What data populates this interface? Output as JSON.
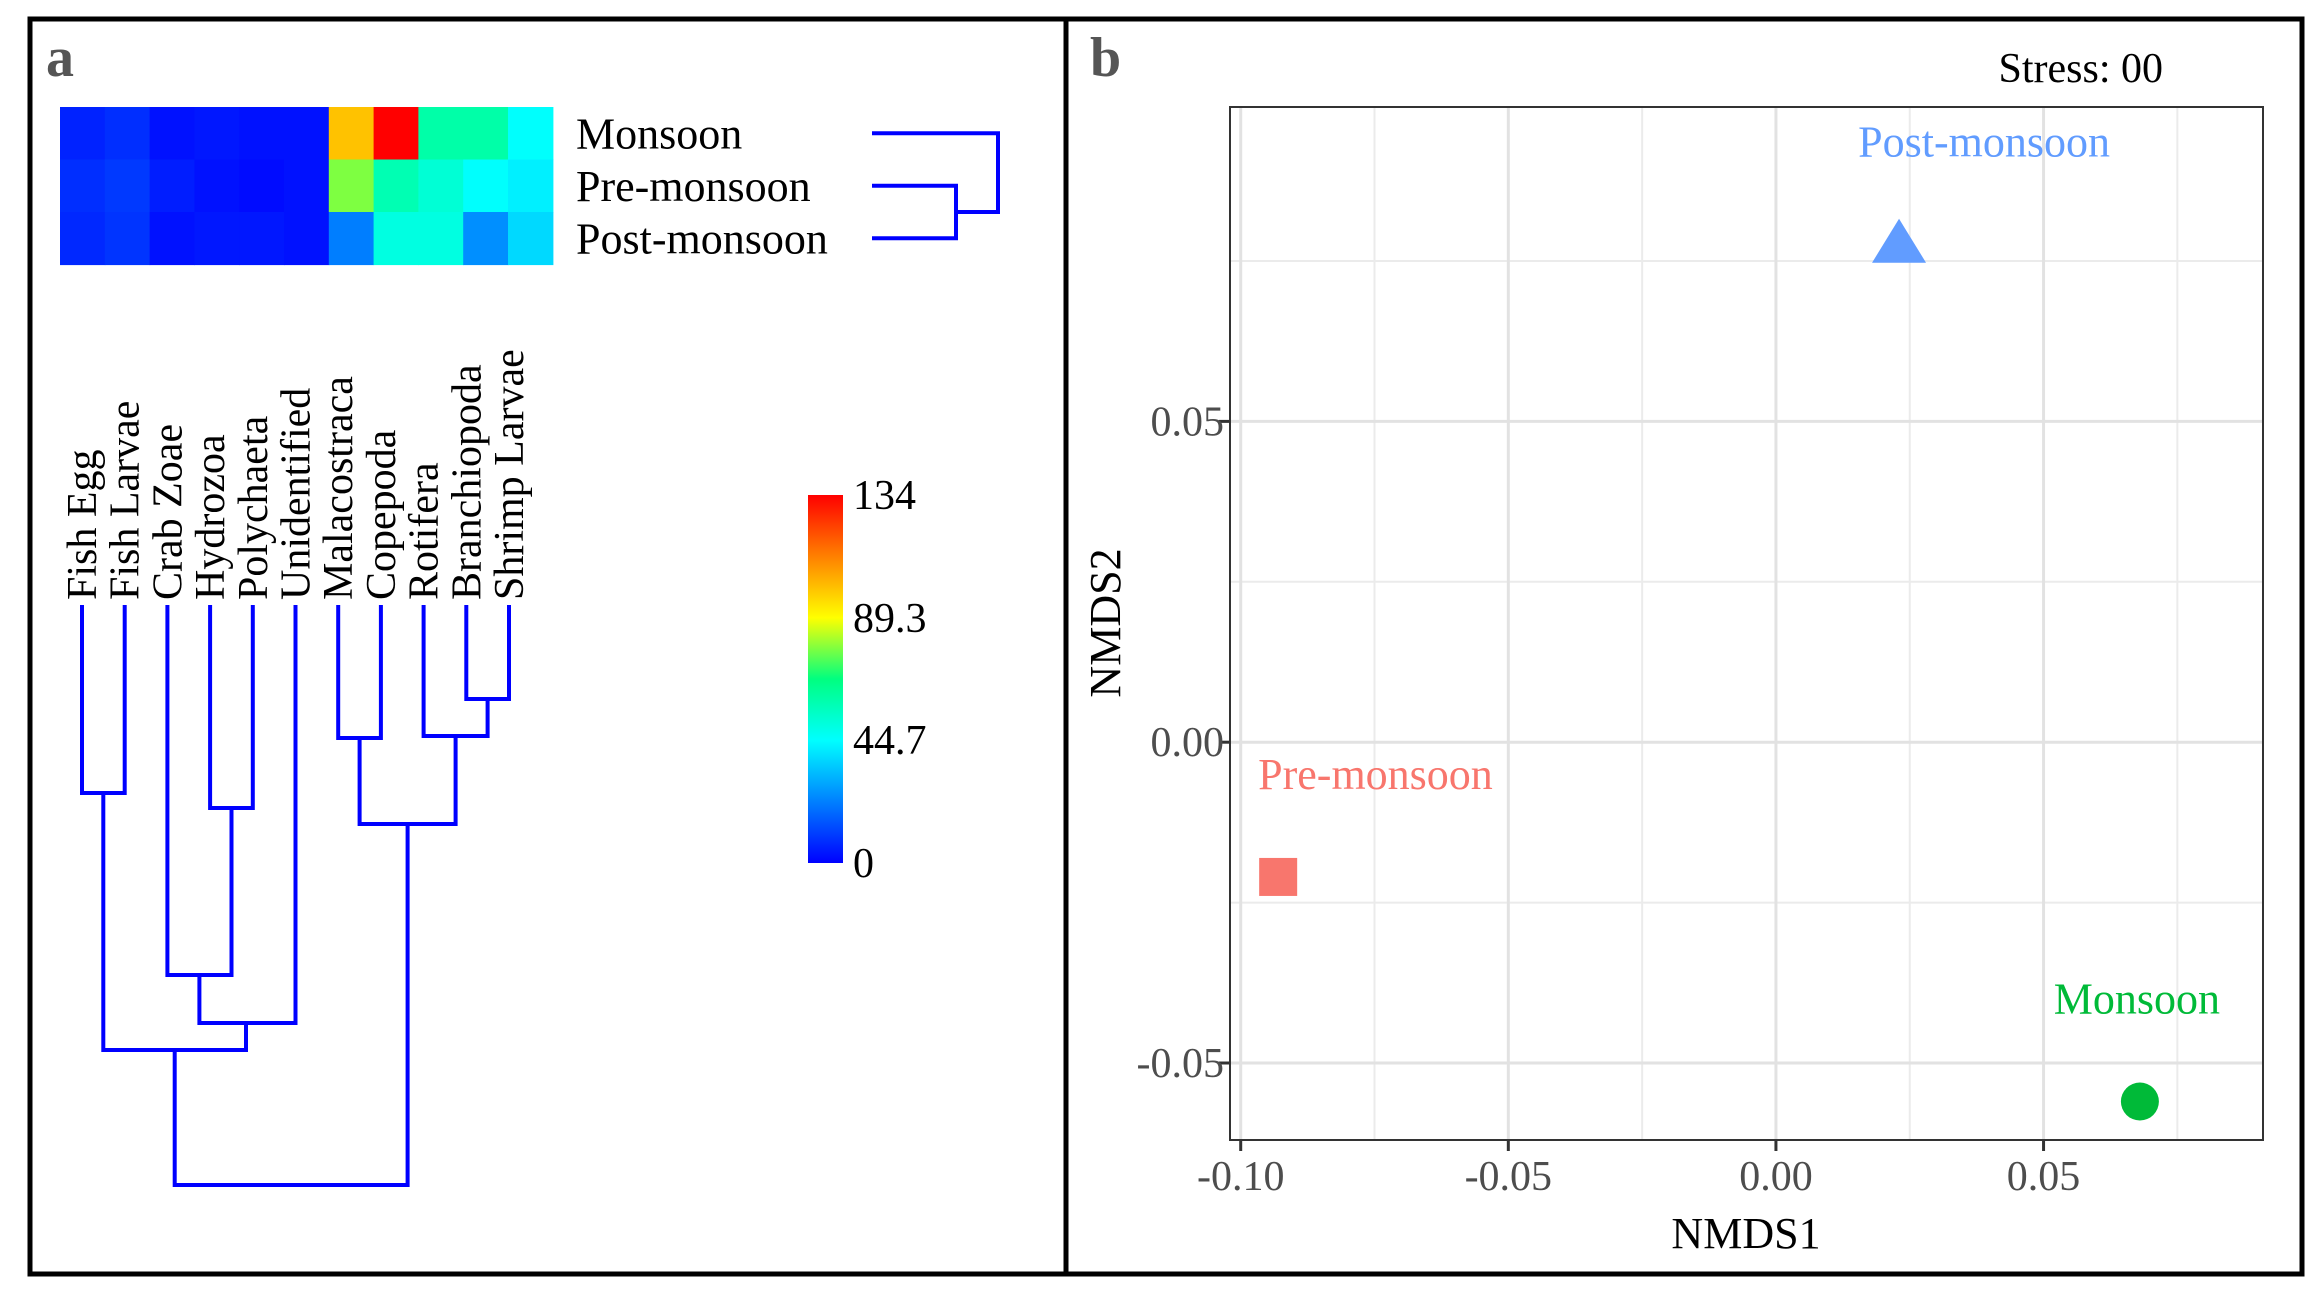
{
  "panel_a": {
    "label": "a",
    "seasons": [
      "Monsoon",
      "Pre-monsoon",
      "Post-monsoon"
    ],
    "taxa": [
      "Fish Egg",
      "Fish Larvae",
      "Crab Zoae",
      "Hydrozoa",
      "Polychaeta",
      "Unidentified",
      "Malacostraca",
      "Copepoda",
      "Rotifera",
      "Branchiopoda",
      "Shrimp Larvae"
    ],
    "chart_data": {
      "type": "heatmap",
      "rows": [
        "Monsoon",
        "Pre-monsoon",
        "Post-monsoon"
      ],
      "columns": [
        "Fish Egg",
        "Fish Larvae",
        "Crab Zoae",
        "Hydrozoa",
        "Polychaeta",
        "Unidentified",
        "Malacostraca",
        "Copepoda",
        "Rotifera",
        "Branchiopoda",
        "Shrimp Larvae"
      ],
      "values": [
        [
          6,
          8,
          3,
          4,
          3,
          3,
          100,
          134,
          60,
          60,
          45
        ],
        [
          8,
          10,
          5,
          3,
          2,
          3,
          78,
          58,
          52,
          45,
          42
        ],
        [
          7,
          9,
          3,
          4,
          4,
          3,
          22,
          50,
          50,
          25,
          38
        ]
      ],
      "scale": {
        "min": 0,
        "max": 134
      },
      "colorbar_ticks": [
        "134",
        "89.3",
        "44.7",
        "0"
      ],
      "colorbar_tick_values": [
        134,
        89.3,
        44.7,
        0
      ],
      "colormap": [
        "#0000ff",
        "#0080ff",
        "#00ffff",
        "#00ff80",
        "#ffff00",
        "#ff8000",
        "#ff0000"
      ],
      "dendrogram_color": "#0000ff",
      "row_dendrogram": "(Monsoon,(Pre-monsoon,Post-monsoon))",
      "column_dendrogram": "((((Fish Egg,Fish Larvae),((Crab Zoae,(Hydrozoa,Polychaeta)),Unidentified)),((Malacostraca,Copepoda),(Rotifera,(Branchiopoda,Shrimp Larvae))))"
    }
  },
  "panel_b": {
    "label": "b",
    "stress_text": "Stress: 00",
    "chart_data": {
      "type": "scatter",
      "xlabel": "NMDS1",
      "ylabel": "NMDS2",
      "xticks": [
        "-0.10",
        "-0.05",
        "0.00",
        "0.05"
      ],
      "xtick_values": [
        -0.1,
        -0.05,
        0.0,
        0.05
      ],
      "yticks": [
        "0.05",
        "0.00",
        "-0.05"
      ],
      "ytick_values": [
        0.05,
        0.0,
        -0.05
      ],
      "xlim": [
        -0.102,
        0.091
      ],
      "ylim": [
        -0.062,
        0.099
      ],
      "grid": true,
      "points": [
        {
          "name": "Pre-monsoon",
          "x": -0.093,
          "y": -0.021,
          "shape": "square",
          "color": "#f8766d"
        },
        {
          "name": "Post-monsoon",
          "x": 0.023,
          "y": 0.078,
          "shape": "triangle",
          "color": "#619cff"
        },
        {
          "name": "Monsoon",
          "x": 0.068,
          "y": -0.056,
          "shape": "circle",
          "color": "#00ba38"
        }
      ]
    }
  }
}
